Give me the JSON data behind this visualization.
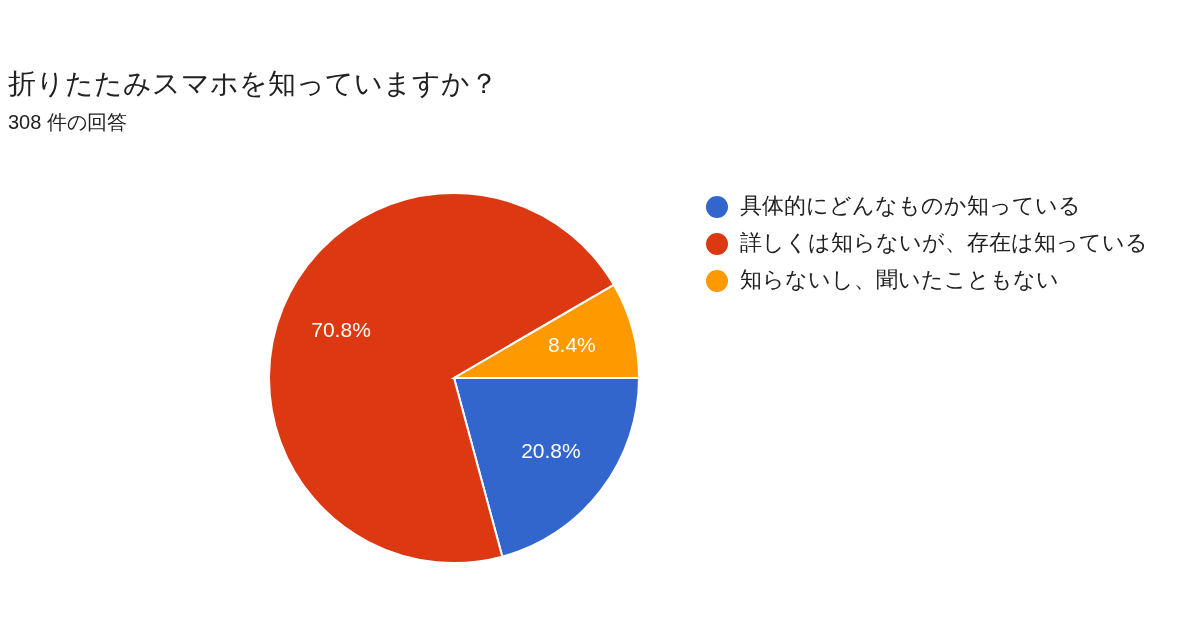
{
  "chart_data": {
    "type": "pie",
    "title": "折りたたみスマホを知っていますか？",
    "subtitle": "308 件の回答",
    "categories": [
      "具体的にどんなものか知っている",
      "詳しくは知らないが、存在は知っている",
      "知らないし、聞いたこともない"
    ],
    "values": [
      20.8,
      70.8,
      8.4
    ],
    "colors": [
      "#3366cc",
      "#dc3912",
      "#ff9900"
    ],
    "value_labels": [
      "20.8%",
      "70.8%",
      "8.4%"
    ],
    "legend": "right"
  }
}
